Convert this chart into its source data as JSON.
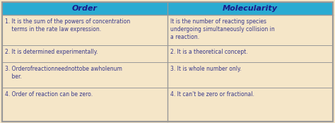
{
  "title_left": "Order",
  "title_right": "Molecularity",
  "header_bg": "#2AABD2",
  "header_text_color": "#1a1a8c",
  "cell_bg": "#F5E6C8",
  "cell_text_color": "#3A3A8C",
  "border_color": "#999999",
  "order_rows": [
    "1. It is the sum of the powers of concentration\n    terms in the rate law expression.",
    "2. It is determined experimentally.",
    "3. Orderofreactionneednottobe awholenum\n    ber.",
    "4. Order of reaction can be zero."
  ],
  "molec_rows": [
    "It is the number of reacting species\nundergoing simultaneously collision in\na reaction.",
    "2. It is a theoretical concept.",
    "3. It is whole number only.",
    "4. It can't be zero or fractional."
  ],
  "figsize": [
    4.74,
    1.74
  ],
  "dpi": 100
}
